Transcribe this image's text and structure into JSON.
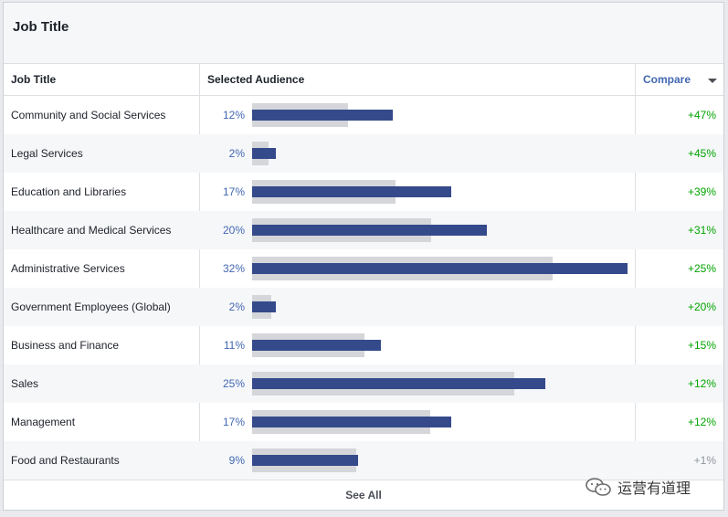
{
  "card": {
    "title": "Job Title"
  },
  "table": {
    "col_job": "Job Title",
    "col_audience": "Selected Audience",
    "col_compare": "Compare",
    "rows": [
      {
        "name": "Community and Social Services",
        "pct": "12%",
        "selected": 12,
        "benchmark": 8.16,
        "diff": "+47%",
        "diff_color": "#00a400"
      },
      {
        "name": "Legal Services",
        "pct": "2%",
        "selected": 2,
        "benchmark": 1.38,
        "diff": "+45%",
        "diff_color": "#00a400"
      },
      {
        "name": "Education and Libraries",
        "pct": "17%",
        "selected": 17,
        "benchmark": 12.23,
        "diff": "+39%",
        "diff_color": "#00a400"
      },
      {
        "name": "Healthcare and Medical Services",
        "pct": "20%",
        "selected": 20,
        "benchmark": 15.27,
        "diff": "+31%",
        "diff_color": "#00a400"
      },
      {
        "name": "Administrative Services",
        "pct": "32%",
        "selected": 32,
        "benchmark": 25.6,
        "diff": "+25%",
        "diff_color": "#00a400"
      },
      {
        "name": "Government Employees (Global)",
        "pct": "2%",
        "selected": 2,
        "benchmark": 1.67,
        "diff": "+20%",
        "diff_color": "#00a400"
      },
      {
        "name": "Business and Finance",
        "pct": "11%",
        "selected": 11,
        "benchmark": 9.57,
        "diff": "+15%",
        "diff_color": "#00a400"
      },
      {
        "name": "Sales",
        "pct": "25%",
        "selected": 25,
        "benchmark": 22.32,
        "diff": "+12%",
        "diff_color": "#00a400"
      },
      {
        "name": "Management",
        "pct": "17%",
        "selected": 17,
        "benchmark": 15.18,
        "diff": "+12%",
        "diff_color": "#00a400"
      },
      {
        "name": "Food and Restaurants",
        "pct": "9%",
        "selected": 9,
        "benchmark": 8.91,
        "diff": "+1%",
        "diff_color": "#90949c"
      }
    ],
    "scale_max_percent": 32
  },
  "footer": {
    "see_all": "See All"
  },
  "watermark": {
    "text": "运营有道理"
  },
  "colors": {
    "accent": "#4267b2",
    "bar_selected": "#354a8a",
    "bar_benchmark": "#d4d6da",
    "positive": "#00a400",
    "neutral": "#90949c"
  }
}
